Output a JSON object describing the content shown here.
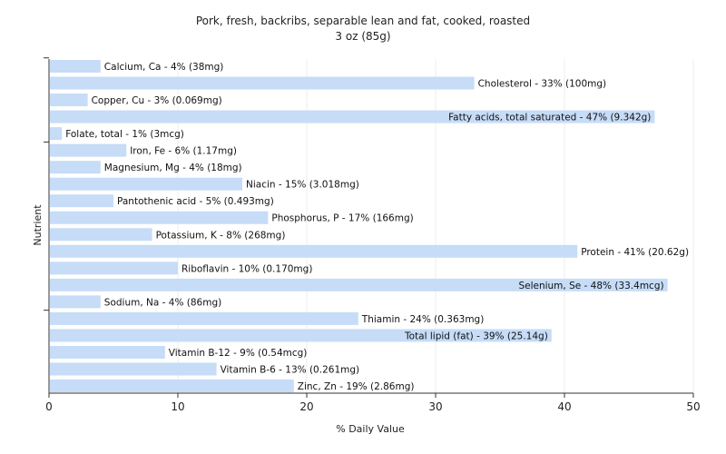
{
  "chart_data": {
    "type": "bar",
    "orientation": "horizontal",
    "title": "Pork, fresh, backribs, separable lean and fat, cooked, roasted",
    "subtitle": "3 oz (85g)",
    "xlabel": "% Daily Value",
    "ylabel": "Nutrient",
    "xlim": [
      0,
      50
    ],
    "xticks": [
      "0",
      "10",
      "20",
      "30",
      "40",
      "50"
    ],
    "grid": true,
    "legend": "none",
    "bar_color": "#c6dcf7",
    "categories": [
      "Calcium, Ca",
      "Cholesterol",
      "Copper, Cu",
      "Fatty acids, total saturated",
      "Folate, total",
      "Iron, Fe",
      "Magnesium, Mg",
      "Niacin",
      "Pantothenic acid",
      "Phosphorus, P",
      "Potassium, K",
      "Protein",
      "Riboflavin",
      "Selenium, Se",
      "Sodium, Na",
      "Thiamin",
      "Total lipid (fat)",
      "Vitamin B-12",
      "Vitamin B-6",
      "Zinc, Zn"
    ],
    "values": [
      4,
      33,
      3,
      47,
      1,
      6,
      4,
      15,
      5,
      17,
      8,
      41,
      10,
      48,
      4,
      24,
      39,
      9,
      13,
      19
    ],
    "labels": [
      "Calcium, Ca - 4% (38mg)",
      "Cholesterol - 33% (100mg)",
      "Copper, Cu - 3% (0.069mg)",
      "Fatty acids, total saturated - 47% (9.342g)",
      "Folate, total - 1% (3mcg)",
      "Iron, Fe - 6% (1.17mg)",
      "Magnesium, Mg - 4% (18mg)",
      "Niacin - 15% (3.018mg)",
      "Pantothenic acid - 5% (0.493mg)",
      "Phosphorus, P - 17% (166mg)",
      "Potassium, K - 8% (268mg)",
      "Protein - 41% (20.62g)",
      "Riboflavin - 10% (0.170mg)",
      "Selenium, Se - 48% (33.4mcg)",
      "Sodium, Na - 4% (86mg)",
      "Thiamin - 24% (0.363mg)",
      "Total lipid (fat) - 39% (25.14g)",
      "Vitamin B-12 - 9% (0.54mcg)",
      "Vitamin B-6 - 13% (0.261mg)",
      "Zinc, Zn - 19% (2.86mg)"
    ]
  }
}
